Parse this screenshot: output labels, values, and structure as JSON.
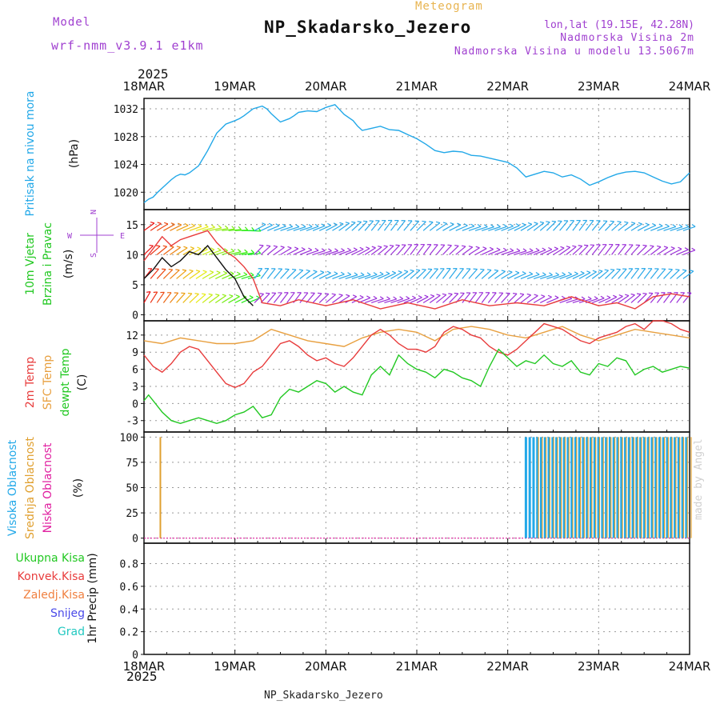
{
  "header": {
    "model_label": "Model",
    "model_name": "wrf-nmm_v3.9.1  e1km",
    "meteogram_label": "Meteogram",
    "station": "NP_Skadarsko_Jezero",
    "lonlat": "lon,lat (19.15E, 42.28N)",
    "elevation": "Nadmorska Visina 2m",
    "model_elevation": "Nadmorska Visina u modelu 13.5067m",
    "year": "2025",
    "bottom_label": "NP_Skadarsko_Jezero",
    "signature": "made by Angel"
  },
  "colors": {
    "pressure": "#22a8e8",
    "t2m": "#e83c3c",
    "sfc": "#e8a040",
    "dewpt": "#22c822",
    "high_cloud": "#22a8e8",
    "mid_cloud": "#e0a030",
    "low_cloud": "#e020a0",
    "wind_violet": "#9b30d8",
    "wind_blue": "#2aa8e8",
    "gust": "#e83c3c"
  },
  "chart_data": [
    {
      "type": "line",
      "panel": "pressure",
      "ylabel_side": "Pritisak na nivou mora",
      "unit": "(hPa)",
      "x_ticks": [
        "18MAR",
        "19MAR",
        "20MAR",
        "21MAR",
        "22MAR",
        "23MAR",
        "24MAR"
      ],
      "yticks": [
        1020,
        1024,
        1028,
        1032
      ],
      "ylim": [
        1017.5,
        1033.5
      ],
      "grid": true,
      "series": [
        {
          "color_key": "pressure",
          "x": [
            0,
            0.05,
            0.1,
            0.15,
            0.2,
            0.25,
            0.3,
            0.35,
            0.4,
            0.45,
            0.5,
            0.6,
            0.7,
            0.8,
            0.9,
            1.0,
            1.05,
            1.1,
            1.2,
            1.3,
            1.35,
            1.4,
            1.5,
            1.6,
            1.65,
            1.7,
            1.8,
            1.9,
            2.0,
            2.1,
            2.2,
            2.3,
            2.35,
            2.4,
            2.5,
            2.6,
            2.7,
            2.8,
            2.9,
            3.0,
            3.1,
            3.2,
            3.3,
            3.4,
            3.5,
            3.6,
            3.7,
            3.8,
            3.9,
            4.0,
            4.1,
            4.2,
            4.3,
            4.4,
            4.5,
            4.6,
            4.7,
            4.8,
            4.9,
            5.0,
            5.1,
            5.2,
            5.3,
            5.4,
            5.5,
            5.6,
            5.7,
            5.8,
            5.9,
            6.0
          ],
          "y": [
            1018.5,
            1019.0,
            1019.3,
            1020.0,
            1020.6,
            1021.2,
            1021.8,
            1022.3,
            1022.6,
            1022.5,
            1022.8,
            1023.8,
            1026.0,
            1028.5,
            1029.8,
            1030.3,
            1030.6,
            1031.0,
            1032.0,
            1032.4,
            1032.0,
            1031.3,
            1030.1,
            1030.6,
            1031.0,
            1031.5,
            1031.7,
            1031.6,
            1032.2,
            1032.6,
            1031.2,
            1030.3,
            1029.5,
            1028.9,
            1029.2,
            1029.5,
            1029.0,
            1028.9,
            1028.3,
            1027.7,
            1026.9,
            1026.0,
            1025.7,
            1025.9,
            1025.8,
            1025.3,
            1025.2,
            1024.9,
            1024.6,
            1024.3,
            1023.5,
            1022.2,
            1022.6,
            1023.0,
            1022.8,
            1022.2,
            1022.5,
            1021.9,
            1021.0,
            1021.5,
            1022.1,
            1022.6,
            1022.9,
            1023.0,
            1022.8,
            1022.2,
            1021.6,
            1021.2,
            1021.5,
            1022.8
          ]
        }
      ]
    },
    {
      "type": "line",
      "panel": "wind",
      "ylabel_side": [
        "10m Vjetar",
        "Brzina i Pravac"
      ],
      "unit": "(m/s)",
      "compass": {
        "n": "N",
        "w": "W",
        "e": "E",
        "s": "S"
      },
      "yticks": [
        0,
        5,
        10,
        15
      ],
      "ylim": [
        -1,
        17.5
      ],
      "grid": true,
      "barb_levels": [
        2,
        6,
        10,
        14,
        18
      ],
      "series": [
        {
          "name_key": "speed",
          "color": "#111111",
          "x": [
            0,
            0.1,
            0.2,
            0.3,
            0.4,
            0.5,
            0.6,
            0.7,
            0.8,
            0.9,
            1.0,
            1.05,
            1.1,
            1.2
          ],
          "y": [
            6.0,
            7.5,
            9.5,
            8.0,
            9.0,
            10.5,
            10.0,
            11.5,
            9.5,
            7.5,
            6.0,
            4.5,
            3.0,
            1.5
          ]
        },
        {
          "name_key": "gust",
          "color_key": "gust",
          "x": [
            0,
            0.1,
            0.2,
            0.3,
            0.4,
            0.5,
            0.6,
            0.7,
            0.8,
            0.9,
            1.0,
            1.1,
            1.2,
            1.3,
            1.5,
            1.7,
            2.0,
            2.3,
            2.6,
            2.9,
            3.2,
            3.5,
            3.8,
            4.1,
            4.4,
            4.7,
            5.0,
            5.2,
            5.4,
            5.6,
            5.8,
            6.0
          ],
          "y": [
            9.0,
            11.0,
            13.0,
            11.5,
            12.5,
            13.0,
            13.5,
            14.0,
            12.0,
            10.5,
            9.5,
            8.0,
            6.0,
            2.0,
            1.5,
            2.5,
            1.5,
            2.5,
            1.0,
            2.0,
            1.0,
            2.5,
            1.5,
            2.0,
            1.5,
            3.0,
            1.5,
            2.0,
            1.0,
            3.0,
            3.5,
            3.0
          ]
        }
      ]
    },
    {
      "type": "line",
      "panel": "temperature",
      "ylabel_side": [
        "2m Temp",
        "SFC Temp",
        "dewpt Temp"
      ],
      "unit": "(C)",
      "yticks": [
        -3,
        0,
        3,
        6,
        9,
        12
      ],
      "ylim": [
        -5,
        14.5
      ],
      "grid": true,
      "series": [
        {
          "name_key": "t2m",
          "color_key": "t2m",
          "x": [
            0,
            0.1,
            0.2,
            0.3,
            0.4,
            0.5,
            0.6,
            0.7,
            0.8,
            0.9,
            1.0,
            1.1,
            1.2,
            1.3,
            1.4,
            1.5,
            1.6,
            1.7,
            1.8,
            1.9,
            2.0,
            2.1,
            2.2,
            2.3,
            2.4,
            2.5,
            2.6,
            2.7,
            2.8,
            2.9,
            3.0,
            3.1,
            3.2,
            3.3,
            3.4,
            3.5,
            3.6,
            3.7,
            3.8,
            3.9,
            4.0,
            4.1,
            4.2,
            4.3,
            4.4,
            4.5,
            4.6,
            4.7,
            4.8,
            4.9,
            5.0,
            5.1,
            5.2,
            5.3,
            5.4,
            5.5,
            5.6,
            5.7,
            5.8,
            5.9,
            6.0
          ],
          "y": [
            8.5,
            6.5,
            5.5,
            7.0,
            9.0,
            10.0,
            9.5,
            7.5,
            5.5,
            3.5,
            2.8,
            3.5,
            5.5,
            6.5,
            8.5,
            10.5,
            11.0,
            10.0,
            8.5,
            7.5,
            8.0,
            7.0,
            6.5,
            8.0,
            10.0,
            12.0,
            13.0,
            12.0,
            10.5,
            9.5,
            9.5,
            9.0,
            10.0,
            12.5,
            13.5,
            13.0,
            12.0,
            11.5,
            10.0,
            9.0,
            8.5,
            9.5,
            11.0,
            12.5,
            14.0,
            13.5,
            13.0,
            12.0,
            11.0,
            10.5,
            11.5,
            12.0,
            12.5,
            13.5,
            14.0,
            13.0,
            14.5,
            14.5,
            14.0,
            13.0,
            12.5
          ]
        },
        {
          "name_key": "sfc",
          "color_key": "sfc",
          "x": [
            0,
            0.2,
            0.4,
            0.6,
            0.8,
            1.0,
            1.2,
            1.4,
            1.6,
            1.8,
            2.0,
            2.2,
            2.4,
            2.6,
            2.8,
            3.0,
            3.2,
            3.4,
            3.6,
            3.8,
            4.0,
            4.2,
            4.4,
            4.6,
            4.8,
            5.0,
            5.2,
            5.4,
            5.6,
            5.8,
            6.0
          ],
          "y": [
            11.0,
            10.5,
            11.5,
            11.0,
            10.5,
            10.5,
            11.0,
            13.0,
            12.0,
            11.0,
            10.5,
            10.0,
            11.5,
            12.5,
            13.0,
            12.5,
            11.0,
            13.0,
            13.5,
            13.0,
            12.0,
            11.5,
            12.5,
            13.5,
            12.0,
            11.0,
            12.0,
            13.0,
            12.5,
            12.0,
            11.5
          ]
        },
        {
          "name_key": "dewpt",
          "color_key": "dewpt",
          "x": [
            0,
            0.05,
            0.1,
            0.2,
            0.3,
            0.4,
            0.5,
            0.6,
            0.7,
            0.8,
            0.9,
            1.0,
            1.1,
            1.2,
            1.3,
            1.4,
            1.5,
            1.6,
            1.7,
            1.8,
            1.9,
            2.0,
            2.1,
            2.2,
            2.3,
            2.4,
            2.5,
            2.6,
            2.7,
            2.8,
            2.9,
            3.0,
            3.1,
            3.2,
            3.3,
            3.4,
            3.5,
            3.6,
            3.7,
            3.8,
            3.9,
            4.0,
            4.1,
            4.2,
            4.3,
            4.4,
            4.5,
            4.6,
            4.7,
            4.8,
            4.9,
            5.0,
            5.1,
            5.2,
            5.3,
            5.4,
            5.5,
            5.6,
            5.7,
            5.8,
            5.9,
            6.0
          ],
          "y": [
            0.5,
            1.5,
            0.5,
            -1.5,
            -3.0,
            -3.5,
            -3.0,
            -2.5,
            -3.0,
            -3.5,
            -3.0,
            -2.0,
            -1.5,
            -0.5,
            -2.5,
            -2.0,
            1.0,
            2.5,
            2.0,
            3.0,
            4.0,
            3.5,
            2.0,
            3.0,
            2.0,
            1.5,
            5.0,
            6.5,
            5.0,
            8.5,
            7.0,
            6.0,
            5.5,
            4.5,
            6.0,
            5.5,
            4.5,
            4.0,
            3.0,
            6.5,
            9.5,
            8.0,
            6.5,
            7.5,
            7.0,
            8.5,
            7.0,
            6.5,
            7.5,
            5.5,
            5.0,
            7.0,
            6.5,
            8.0,
            7.5,
            5.0,
            6.0,
            6.5,
            5.5,
            6.0,
            6.5,
            6.2
          ]
        }
      ]
    },
    {
      "type": "bar",
      "panel": "clouds",
      "ylabel_side": [
        "Visoka Oblacnost",
        "Srednja Oblacnost",
        "Niska Oblacnost"
      ],
      "unit": "(%)",
      "yticks": [
        0,
        25,
        50,
        75,
        100
      ],
      "ylim": [
        -5,
        105
      ],
      "grid": true,
      "series": [
        {
          "name_key": "mid",
          "color_key": "mid_cloud",
          "x": [
            0.18
          ],
          "y": [
            100
          ]
        },
        {
          "name_key": "high_block",
          "color_key": "high_cloud",
          "x_start": 4.2,
          "x_end": 6.0,
          "y": 100
        },
        {
          "name_key": "mid_block",
          "color_key": "mid_cloud",
          "x_start": 4.32,
          "x_end": 6.0,
          "y": 100
        }
      ]
    },
    {
      "type": "bar",
      "panel": "precip",
      "ylabel_side": [
        "Ukupna Kisa",
        "Konvek.Kisa",
        "Zaledj.Kisa",
        "Snijeg",
        "Grad"
      ],
      "unit": "1hr Precip (mm)",
      "yticks": [
        0,
        0.2,
        0.4,
        0.6,
        0.8
      ],
      "ylim": [
        0,
        0.98
      ],
      "grid": true,
      "series": []
    }
  ]
}
